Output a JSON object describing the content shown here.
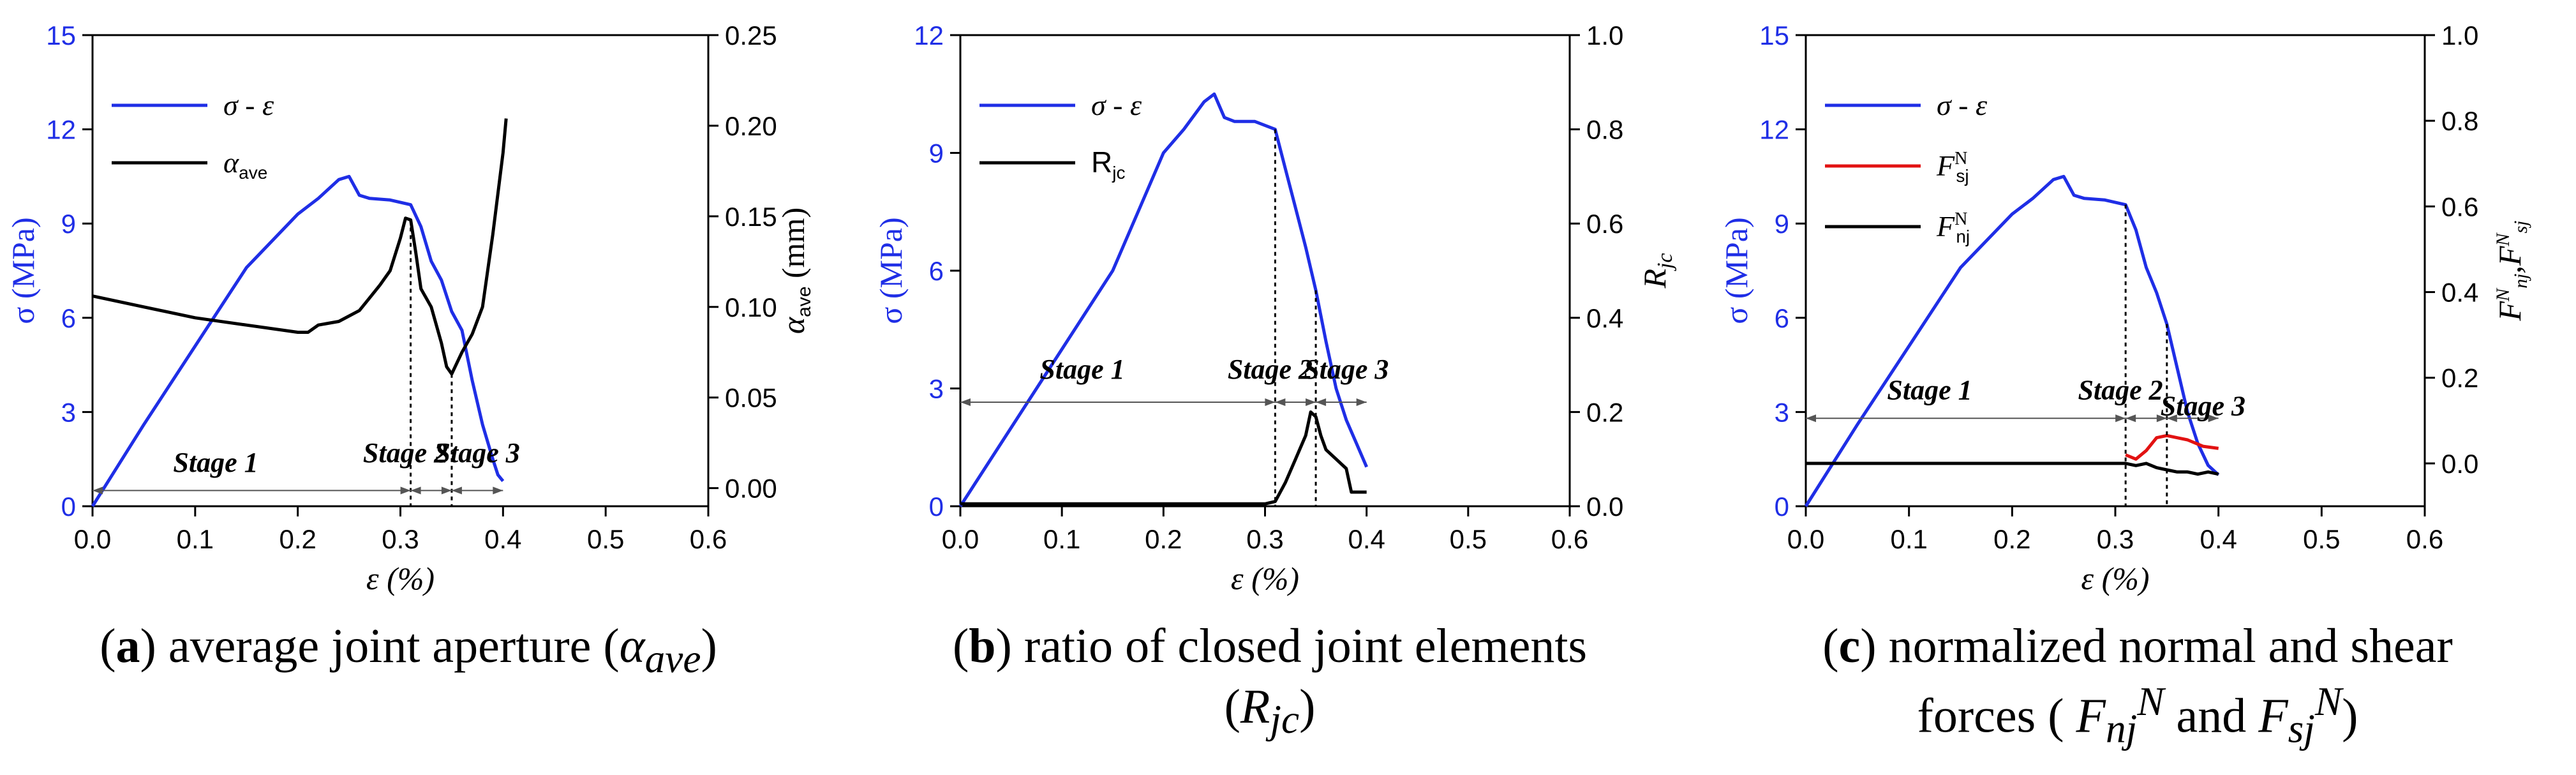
{
  "colors": {
    "blue": "#1f2ee6",
    "black": "#000000",
    "red": "#e21212"
  },
  "captions": {
    "a": {
      "letter": "a",
      "text": "average joint aperture (",
      "symbol": "α",
      "sub": "ave",
      "close": ")"
    },
    "b": {
      "letter": "b",
      "line1": "ratio of closed joint elements",
      "open": "(",
      "symbol": "R",
      "sub": "jc",
      "close": ")"
    },
    "c": {
      "letter": "c",
      "line1": "normalized normal and shear",
      "line2a": "forces (  ",
      "f1": "F",
      "f1sub": "nj",
      "f1sup": "N",
      "and": " and ",
      "f2": "F",
      "f2sub": "sj",
      "f2sup": "N",
      "close": ")"
    }
  },
  "chart_data": [
    {
      "id": "a",
      "type": "line",
      "xlabel": "ε (%)",
      "ylabel_left": "σ (MPa)",
      "ylabel_right": "α_ave (mm)",
      "xlim": [
        0,
        0.6
      ],
      "ylim_left": [
        0,
        15
      ],
      "ylim_right": [
        -0.01,
        0.25
      ],
      "x_ticks": [
        "0.0",
        "0.1",
        "0.2",
        "0.3",
        "0.4",
        "0.5",
        "0.6"
      ],
      "y_left_ticks": [
        "0",
        "3",
        "6",
        "9",
        "12",
        "15"
      ],
      "y_right_ticks": [
        "0.00",
        "0.05",
        "0.10",
        "0.15",
        "0.20",
        "0.25"
      ],
      "legend": [
        {
          "label": "σ-ε",
          "color": "#1f2ee6"
        },
        {
          "label": "α_ave",
          "color": "#000000"
        }
      ],
      "series": [
        {
          "name": "σ-ε",
          "axis": "left",
          "color": "#1f2ee6",
          "points": [
            [
              0,
              0
            ],
            [
              0.05,
              2.6
            ],
            [
              0.1,
              5.1
            ],
            [
              0.15,
              7.6
            ],
            [
              0.2,
              9.3
            ],
            [
              0.22,
              9.8
            ],
            [
              0.24,
              10.4
            ],
            [
              0.25,
              10.5
            ],
            [
              0.26,
              9.9
            ],
            [
              0.27,
              9.8
            ],
            [
              0.29,
              9.75
            ],
            [
              0.31,
              9.6
            ],
            [
              0.32,
              8.9
            ],
            [
              0.33,
              7.8
            ],
            [
              0.34,
              7.2
            ],
            [
              0.35,
              6.2
            ],
            [
              0.36,
              5.6
            ],
            [
              0.37,
              4.0
            ],
            [
              0.38,
              2.6
            ],
            [
              0.39,
              1.5
            ],
            [
              0.395,
              1.0
            ],
            [
              0.4,
              0.8
            ]
          ]
        },
        {
          "name": "α_ave",
          "axis": "right",
          "color": "#000000",
          "points": [
            [
              0,
              0.106
            ],
            [
              0.05,
              0.1
            ],
            [
              0.1,
              0.094
            ],
            [
              0.15,
              0.09
            ],
            [
              0.2,
              0.086
            ],
            [
              0.21,
              0.086
            ],
            [
              0.22,
              0.09
            ],
            [
              0.24,
              0.092
            ],
            [
              0.26,
              0.098
            ],
            [
              0.27,
              0.105
            ],
            [
              0.28,
              0.112
            ],
            [
              0.29,
              0.12
            ],
            [
              0.3,
              0.138
            ],
            [
              0.305,
              0.149
            ],
            [
              0.31,
              0.148
            ],
            [
              0.315,
              0.13
            ],
            [
              0.32,
              0.11
            ],
            [
              0.33,
              0.1
            ],
            [
              0.34,
              0.08
            ],
            [
              0.345,
              0.067
            ],
            [
              0.35,
              0.063
            ],
            [
              0.36,
              0.075
            ],
            [
              0.37,
              0.085
            ],
            [
              0.38,
              0.1
            ],
            [
              0.39,
              0.14
            ],
            [
              0.4,
              0.185
            ],
            [
              0.403,
              0.204
            ]
          ]
        }
      ],
      "vlines": [
        0.31,
        0.35
      ],
      "stages": [
        {
          "label": "Stage 1",
          "x0": 0.0,
          "x1": 0.31,
          "y": 0.5,
          "tx": 0.12,
          "ty": 1.1
        },
        {
          "label": "Stage 2",
          "x0": 0.31,
          "x1": 0.35,
          "y": 0.5,
          "tx": 0.305,
          "ty": 1.4
        },
        {
          "label": "Stage 3",
          "x0": 0.35,
          "x1": 0.4,
          "y": 0.5,
          "tx": 0.375,
          "ty": 1.4
        }
      ]
    },
    {
      "id": "b",
      "type": "line",
      "xlabel": "ε (%)",
      "ylabel_left": "σ (MPa)",
      "ylabel_right": "R_jc",
      "xlim": [
        0,
        0.6
      ],
      "ylim_left": [
        0,
        12
      ],
      "ylim_right": [
        0,
        1
      ],
      "x_ticks": [
        "0.0",
        "0.1",
        "0.2",
        "0.3",
        "0.4",
        "0.5",
        "0.6"
      ],
      "y_left_ticks": [
        "0",
        "3",
        "6",
        "9",
        "12"
      ],
      "y_right_ticks": [
        "0.0",
        "0.2",
        "0.4",
        "0.6",
        "0.8",
        "1.0"
      ],
      "legend": [
        {
          "label": "σ-ε",
          "color": "#1f2ee6"
        },
        {
          "label": "R_jc",
          "color": "#000000"
        }
      ],
      "series": [
        {
          "name": "σ-ε",
          "axis": "left",
          "color": "#1f2ee6",
          "points": [
            [
              0,
              0
            ],
            [
              0.05,
              2.0
            ],
            [
              0.1,
              4.0
            ],
            [
              0.15,
              6.0
            ],
            [
              0.2,
              9.0
            ],
            [
              0.22,
              9.6
            ],
            [
              0.24,
              10.3
            ],
            [
              0.25,
              10.5
            ],
            [
              0.26,
              9.9
            ],
            [
              0.27,
              9.8
            ],
            [
              0.29,
              9.8
            ],
            [
              0.31,
              9.6
            ],
            [
              0.32,
              8.6
            ],
            [
              0.33,
              7.6
            ],
            [
              0.34,
              6.6
            ],
            [
              0.35,
              5.5
            ],
            [
              0.36,
              4.2
            ],
            [
              0.37,
              3.0
            ],
            [
              0.38,
              2.2
            ],
            [
              0.39,
              1.6
            ],
            [
              0.4,
              1.0
            ]
          ]
        },
        {
          "name": "R_jc",
          "axis": "right",
          "color": "#000000",
          "points": [
            [
              0,
              0.005
            ],
            [
              0.3,
              0.005
            ],
            [
              0.31,
              0.01
            ],
            [
              0.32,
              0.05
            ],
            [
              0.33,
              0.1
            ],
            [
              0.34,
              0.15
            ],
            [
              0.345,
              0.2
            ],
            [
              0.35,
              0.19
            ],
            [
              0.355,
              0.15
            ],
            [
              0.36,
              0.12
            ],
            [
              0.37,
              0.1
            ],
            [
              0.38,
              0.08
            ],
            [
              0.385,
              0.03
            ],
            [
              0.4,
              0.03
            ]
          ]
        }
      ],
      "vlines": [
        0.31,
        0.35
      ],
      "stages": [
        {
          "label": "Stage 1",
          "x0": 0.0,
          "x1": 0.31,
          "y": 2.65,
          "tx": 0.12,
          "ty": 3.25
        },
        {
          "label": "Stage 2",
          "x0": 0.31,
          "x1": 0.35,
          "y": 2.65,
          "tx": 0.305,
          "ty": 3.25
        },
        {
          "label": "Stage 3",
          "x0": 0.35,
          "x1": 0.4,
          "y": 2.65,
          "tx": 0.38,
          "ty": 3.25
        }
      ]
    },
    {
      "id": "c",
      "type": "line",
      "xlabel": "ε (%)",
      "ylabel_left": "σ (MPa)",
      "ylabel_right": "F_nj^N, F_sj^N",
      "xlim": [
        0,
        0.6
      ],
      "ylim_left": [
        0,
        15
      ],
      "ylim_right": [
        -0.1,
        1.0
      ],
      "x_ticks": [
        "0.0",
        "0.1",
        "0.2",
        "0.3",
        "0.4",
        "0.5",
        "0.6"
      ],
      "y_left_ticks": [
        "0",
        "3",
        "6",
        "9",
        "12",
        "15"
      ],
      "y_right_ticks": [
        "0.0",
        "0.2",
        "0.4",
        "0.6",
        "0.8",
        "1.0"
      ],
      "legend": [
        {
          "label": "σ-ε",
          "color": "#1f2ee6"
        },
        {
          "label": "F_sj^N",
          "color": "#e21212"
        },
        {
          "label": "F_nj^N",
          "color": "#000000"
        }
      ],
      "series": [
        {
          "name": "σ-ε",
          "axis": "left",
          "color": "#1f2ee6",
          "points": [
            [
              0,
              0
            ],
            [
              0.05,
              2.6
            ],
            [
              0.1,
              5.1
            ],
            [
              0.15,
              7.6
            ],
            [
              0.2,
              9.3
            ],
            [
              0.22,
              9.8
            ],
            [
              0.24,
              10.4
            ],
            [
              0.25,
              10.5
            ],
            [
              0.26,
              9.9
            ],
            [
              0.27,
              9.8
            ],
            [
              0.29,
              9.75
            ],
            [
              0.31,
              9.6
            ],
            [
              0.32,
              8.8
            ],
            [
              0.33,
              7.6
            ],
            [
              0.34,
              6.8
            ],
            [
              0.35,
              5.8
            ],
            [
              0.36,
              4.4
            ],
            [
              0.37,
              3.0
            ],
            [
              0.38,
              2.0
            ],
            [
              0.39,
              1.3
            ],
            [
              0.4,
              1.0
            ]
          ]
        },
        {
          "name": "F_sj^N",
          "axis": "right",
          "color": "#e21212",
          "points": [
            [
              0.31,
              0.02
            ],
            [
              0.32,
              0.01
            ],
            [
              0.33,
              0.03
            ],
            [
              0.34,
              0.06
            ],
            [
              0.35,
              0.065
            ],
            [
              0.36,
              0.06
            ],
            [
              0.37,
              0.055
            ],
            [
              0.38,
              0.045
            ],
            [
              0.385,
              0.04
            ],
            [
              0.4,
              0.035
            ]
          ]
        },
        {
          "name": "F_nj^N",
          "axis": "right",
          "color": "#000000",
          "points": [
            [
              0,
              0.0
            ],
            [
              0.31,
              0.0
            ],
            [
              0.32,
              -0.005
            ],
            [
              0.33,
              0.0
            ],
            [
              0.34,
              -0.01
            ],
            [
              0.35,
              -0.015
            ],
            [
              0.36,
              -0.02
            ],
            [
              0.37,
              -0.02
            ],
            [
              0.38,
              -0.025
            ],
            [
              0.39,
              -0.02
            ],
            [
              0.4,
              -0.025
            ]
          ]
        }
      ],
      "vlines": [
        0.31,
        0.35
      ],
      "stages": [
        {
          "label": "Stage 1",
          "x0": 0.0,
          "x1": 0.31,
          "y": 2.8,
          "tx": 0.12,
          "ty": 3.4
        },
        {
          "label": "Stage 2",
          "x0": 0.31,
          "x1": 0.35,
          "y": 2.8,
          "tx": 0.305,
          "ty": 3.4
        },
        {
          "label": "Stage 3",
          "x0": 0.35,
          "x1": 0.4,
          "y": 2.8,
          "tx": 0.385,
          "ty": 2.9
        }
      ]
    }
  ]
}
